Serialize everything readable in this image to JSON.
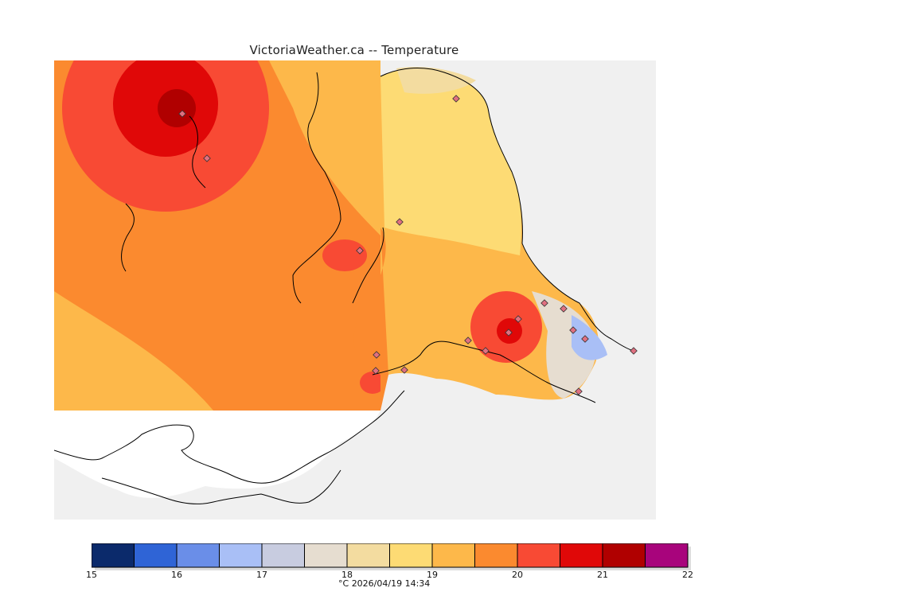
{
  "title": "VictoriaWeather.ca -- Temperature",
  "legend": {
    "unit": "°C",
    "timestamp": "2026/04/19 14:34",
    "colors": [
      "#0b2a6b",
      "#2f64d6",
      "#6a8ee8",
      "#a9bff6",
      "#c8cce0",
      "#e6ddd0",
      "#f3dca0",
      "#fddb74",
      "#fdb84a",
      "#fb8a2f",
      "#f84a34",
      "#e00808",
      "#b00000",
      "#a8047c"
    ],
    "ticks": [
      "15",
      "16",
      "17",
      "18",
      "19",
      "20",
      "21",
      "22"
    ]
  },
  "colors": {
    "land_outside": "#f0f0f0",
    "water": "#ffffff",
    "outline": "#000000"
  }
}
